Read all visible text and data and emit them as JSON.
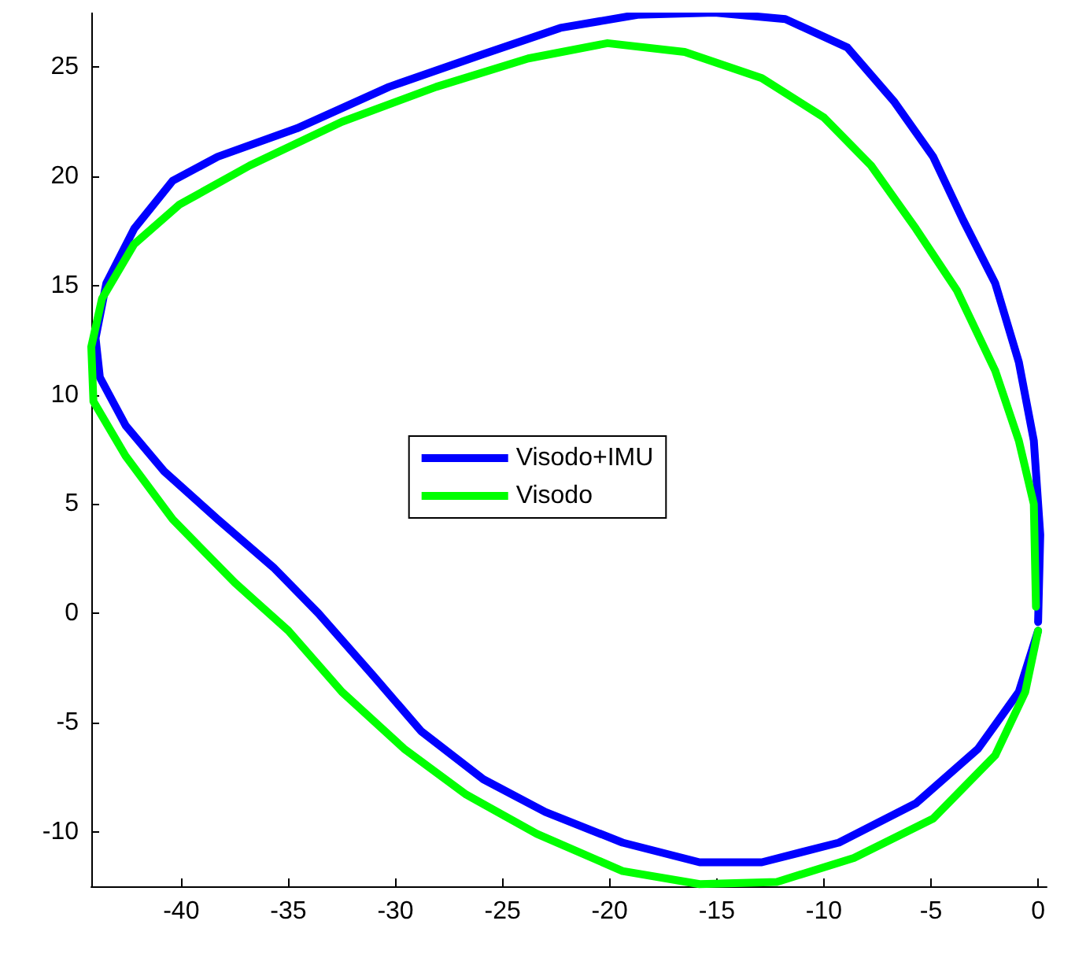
{
  "chart_data": {
    "type": "line",
    "xlim": [
      -44.2,
      0.4
    ],
    "ylim": [
      -12.5,
      27.5
    ],
    "xticks": [
      -40,
      -35,
      -30,
      -25,
      -20,
      -15,
      -10,
      -5,
      0
    ],
    "yticks": [
      -10,
      -5,
      0,
      5,
      10,
      15,
      20,
      25
    ],
    "grid": false,
    "legend": "center",
    "marker": "none",
    "line_style": "solid",
    "series": [
      {
        "name": "Visodo+IMU",
        "color": "#0000ff",
        "x": [
          0,
          0.1,
          -0.2,
          -0.9,
          -2.0,
          -3.5,
          -4.9,
          -6.7,
          -8.9,
          -11.8,
          -15.1,
          -18.7,
          -22.3,
          -25.9,
          -30.3,
          -34.6,
          -38.3,
          -40.4,
          -42.2,
          -43.5,
          -44.0,
          -43.8,
          -42.6,
          -40.8,
          -38.3,
          -35.7,
          -33.6,
          -31.0,
          -28.8,
          -25.9,
          -23.0,
          -19.4,
          -15.8,
          -12.9,
          -9.3,
          -5.7,
          -2.8,
          -0.9,
          0
        ],
        "values": [
          -0.4,
          3.6,
          7.9,
          11.5,
          15.1,
          18.0,
          20.9,
          23.4,
          25.9,
          27.2,
          27.5,
          27.4,
          26.8,
          25.6,
          24.1,
          22.2,
          20.9,
          19.8,
          17.6,
          15.1,
          12.6,
          10.8,
          8.6,
          6.5,
          4.3,
          2.1,
          0.0,
          -2.9,
          -5.4,
          -7.6,
          -9.1,
          -10.5,
          -11.4,
          -11.4,
          -10.5,
          -8.7,
          -6.2,
          -3.6,
          -0.8
        ]
      },
      {
        "name": "Visodo",
        "color": "#00ff00",
        "x": [
          -0.1,
          -0.2,
          -0.9,
          -2.0,
          -3.8,
          -5.7,
          -7.8,
          -10.0,
          -12.9,
          -16.5,
          -20.1,
          -23.8,
          -28.1,
          -32.5,
          -36.8,
          -40.1,
          -42.2,
          -43.7,
          -44.2,
          -44.1,
          -42.6,
          -40.4,
          -37.5,
          -35.0,
          -32.5,
          -29.6,
          -26.7,
          -23.4,
          -19.4,
          -15.8,
          -12.2,
          -8.6,
          -4.9,
          -2.0,
          -0.6,
          0
        ],
        "values": [
          0.3,
          5.0,
          7.9,
          11.1,
          14.8,
          17.6,
          20.5,
          22.7,
          24.5,
          25.7,
          26.1,
          25.4,
          24.1,
          22.5,
          20.5,
          18.7,
          16.9,
          14.4,
          12.2,
          9.7,
          7.2,
          4.3,
          1.4,
          -0.8,
          -3.6,
          -6.2,
          -8.3,
          -10.1,
          -11.8,
          -12.4,
          -12.3,
          -11.2,
          -9.4,
          -6.5,
          -3.6,
          -0.8
        ]
      }
    ]
  }
}
